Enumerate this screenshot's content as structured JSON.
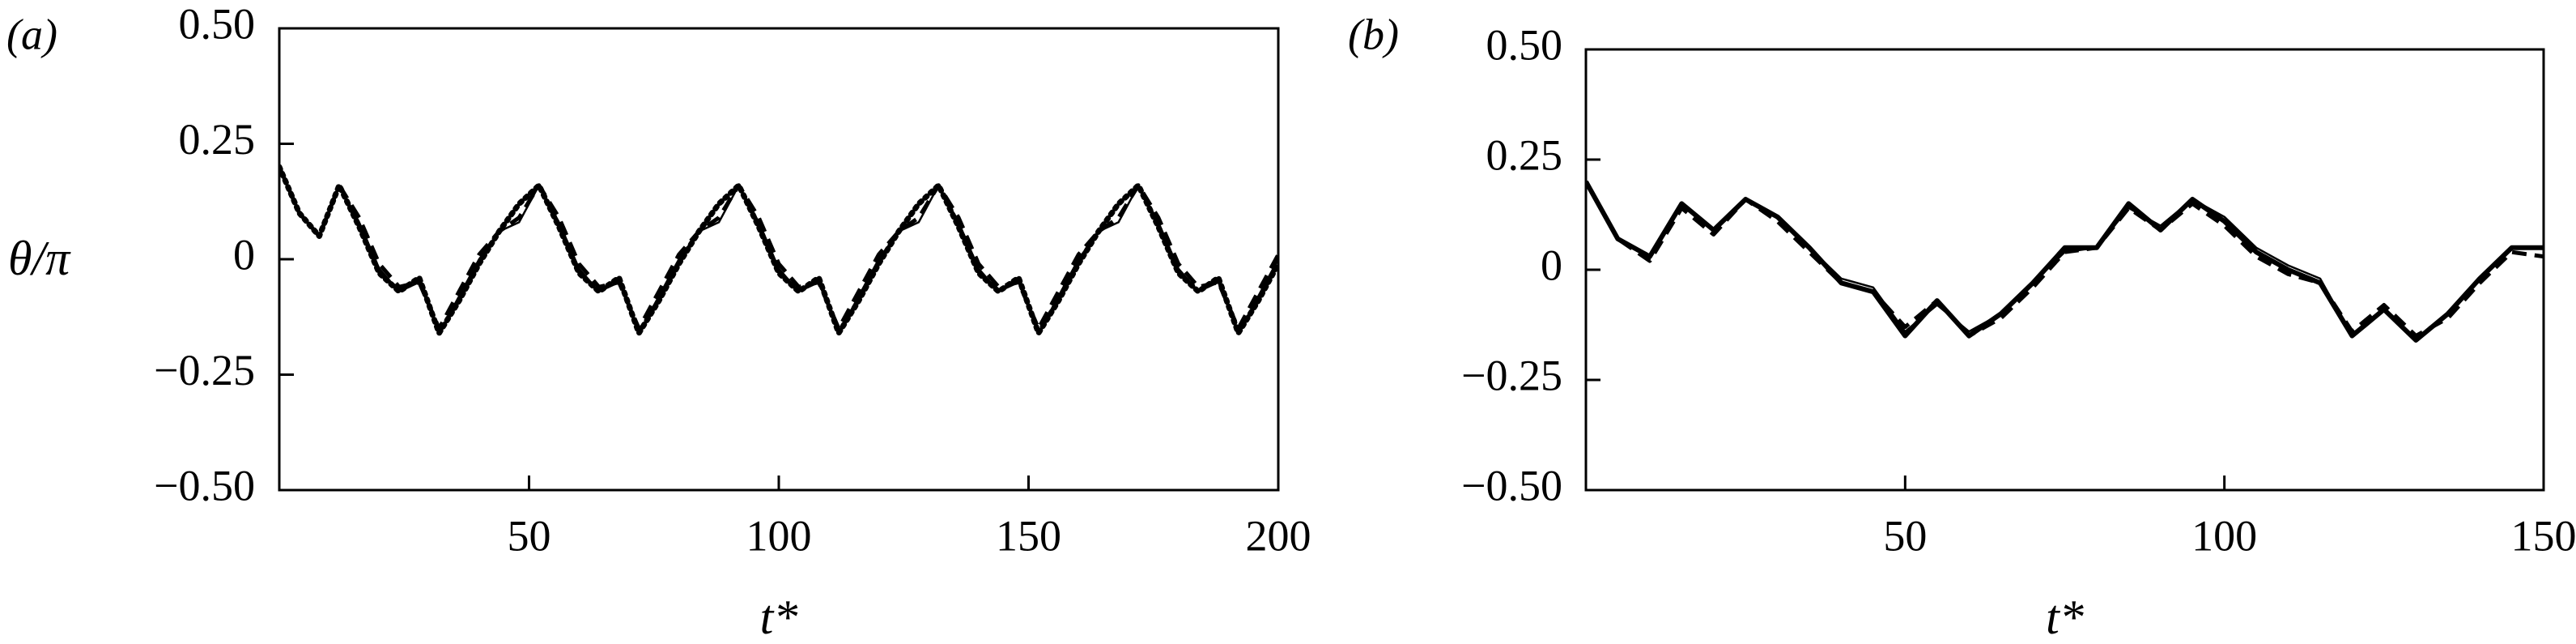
{
  "chart_data": [
    {
      "type": "line",
      "panel_label": "(a)",
      "ylabel": "θ/π",
      "xlabel": "t*",
      "xlim": [
        0,
        200
      ],
      "ylim": [
        -0.5,
        0.5
      ],
      "xticks": [
        50,
        100,
        150,
        200
      ],
      "yticks": [
        {
          "value": -0.5,
          "label": "−0.50"
        },
        {
          "value": -0.25,
          "label": "−0.25"
        },
        0,
        {
          "value": 0.25,
          "label": "0.25"
        },
        {
          "value": 0.5,
          "label": "0.50"
        }
      ],
      "x": [
        0,
        4,
        8,
        12,
        16,
        20,
        24,
        28,
        32,
        36,
        40,
        44,
        48,
        52,
        56,
        60,
        64,
        68,
        72,
        76,
        80,
        84,
        88,
        92,
        96,
        100,
        104,
        108,
        112,
        116,
        120,
        124,
        128,
        132,
        136,
        140,
        144,
        148,
        152,
        156,
        160,
        164,
        168,
        172,
        176,
        180,
        184,
        188,
        192,
        196,
        200
      ],
      "series": [
        {
          "color": "#000000",
          "linestyle": "solid",
          "linewidth": 2.5,
          "values": [
            0.2,
            0.1,
            0.05,
            0.16,
            0.08,
            -0.02,
            -0.07,
            -0.05,
            -0.16,
            -0.08,
            0.0,
            0.06,
            0.08,
            0.16,
            0.08,
            -0.02,
            -0.07,
            -0.05,
            -0.16,
            -0.08,
            0.0,
            0.06,
            0.08,
            0.16,
            0.08,
            -0.02,
            -0.07,
            -0.05,
            -0.16,
            -0.08,
            0.0,
            0.06,
            0.08,
            0.16,
            0.08,
            -0.02,
            -0.07,
            -0.05,
            -0.16,
            -0.08,
            0.0,
            0.06,
            0.08,
            0.16,
            0.08,
            -0.02,
            -0.07,
            -0.05,
            -0.16,
            -0.08,
            0.0
          ]
        },
        {
          "color": "#000000",
          "linestyle": "dotted",
          "linewidth": 7,
          "values": [
            0.2,
            0.1,
            0.05,
            0.16,
            0.07,
            -0.03,
            -0.07,
            -0.04,
            -0.16,
            -0.09,
            -0.01,
            0.06,
            0.12,
            0.16,
            0.07,
            -0.03,
            -0.07,
            -0.04,
            -0.16,
            -0.09,
            -0.01,
            0.06,
            0.12,
            0.16,
            0.07,
            -0.03,
            -0.07,
            -0.04,
            -0.16,
            -0.09,
            -0.01,
            0.06,
            0.12,
            0.16,
            0.07,
            -0.03,
            -0.07,
            -0.04,
            -0.16,
            -0.09,
            -0.01,
            0.06,
            0.12,
            0.16,
            0.07,
            -0.03,
            -0.07,
            -0.04,
            -0.16,
            -0.09,
            -0.01
          ]
        },
        {
          "color": "#000000",
          "linestyle": "dashed",
          "linewidth": 5,
          "values": [
            0.2,
            0.1,
            0.05,
            0.16,
            0.09,
            -0.01,
            -0.06,
            -0.05,
            -0.15,
            -0.07,
            0.01,
            0.06,
            0.09,
            0.16,
            0.09,
            -0.01,
            -0.06,
            -0.05,
            -0.15,
            -0.07,
            0.01,
            0.06,
            0.09,
            0.16,
            0.09,
            -0.01,
            -0.06,
            -0.05,
            -0.15,
            -0.07,
            0.01,
            0.06,
            0.09,
            0.16,
            0.09,
            -0.01,
            -0.06,
            -0.05,
            -0.15,
            -0.07,
            0.01,
            0.06,
            0.09,
            0.16,
            0.09,
            -0.01,
            -0.06,
            -0.05,
            -0.15,
            -0.07,
            0.01
          ]
        }
      ]
    },
    {
      "type": "line",
      "panel_label": "(b)",
      "xlabel": "t*",
      "xlim": [
        0,
        150
      ],
      "ylim": [
        -0.5,
        0.5
      ],
      "xticks": [
        50,
        100,
        150
      ],
      "yticks": [
        {
          "value": -0.5,
          "label": "−0.50"
        },
        {
          "value": -0.25,
          "label": "−0.25"
        },
        0,
        {
          "value": 0.25,
          "label": "0.25"
        },
        {
          "value": 0.5,
          "label": "0.50"
        }
      ],
      "x": [
        0,
        5,
        10,
        15,
        20,
        25,
        30,
        35,
        40,
        45,
        50,
        55,
        60,
        65,
        70,
        75,
        80,
        85,
        90,
        95,
        100,
        105,
        110,
        115,
        120,
        125,
        130,
        135,
        140,
        145,
        150
      ],
      "series": [
        {
          "color": "#000000",
          "linestyle": "solid",
          "linewidth": 2.5,
          "values": [
            0.2,
            0.07,
            0.03,
            0.15,
            0.09,
            0.16,
            0.12,
            0.05,
            -0.02,
            -0.04,
            -0.14,
            -0.08,
            -0.14,
            -0.1,
            -0.03,
            0.04,
            0.05,
            0.14,
            0.1,
            0.16,
            0.12,
            0.05,
            0.01,
            -0.02,
            -0.15,
            -0.09,
            -0.16,
            -0.1,
            -0.02,
            0.05,
            0.05
          ]
        },
        {
          "color": "#000000",
          "linestyle": "solid",
          "linewidth": 6,
          "values": [
            0.2,
            0.07,
            0.03,
            0.15,
            0.09,
            0.16,
            0.12,
            0.05,
            -0.03,
            -0.05,
            -0.15,
            -0.07,
            -0.15,
            -0.1,
            -0.03,
            0.05,
            0.05,
            0.15,
            0.09,
            0.16,
            0.11,
            0.04,
            0.0,
            -0.03,
            -0.15,
            -0.09,
            -0.16,
            -0.1,
            -0.02,
            0.05,
            0.05
          ]
        },
        {
          "color": "#000000",
          "linestyle": "dashed",
          "linewidth": 5,
          "values": [
            0.2,
            0.07,
            0.02,
            0.14,
            0.08,
            0.16,
            0.11,
            0.04,
            -0.03,
            -0.05,
            -0.13,
            -0.07,
            -0.15,
            -0.11,
            -0.04,
            0.04,
            0.05,
            0.14,
            0.09,
            0.15,
            0.1,
            0.03,
            -0.01,
            -0.03,
            -0.14,
            -0.08,
            -0.15,
            -0.11,
            -0.03,
            0.04,
            0.03
          ]
        }
      ]
    }
  ]
}
